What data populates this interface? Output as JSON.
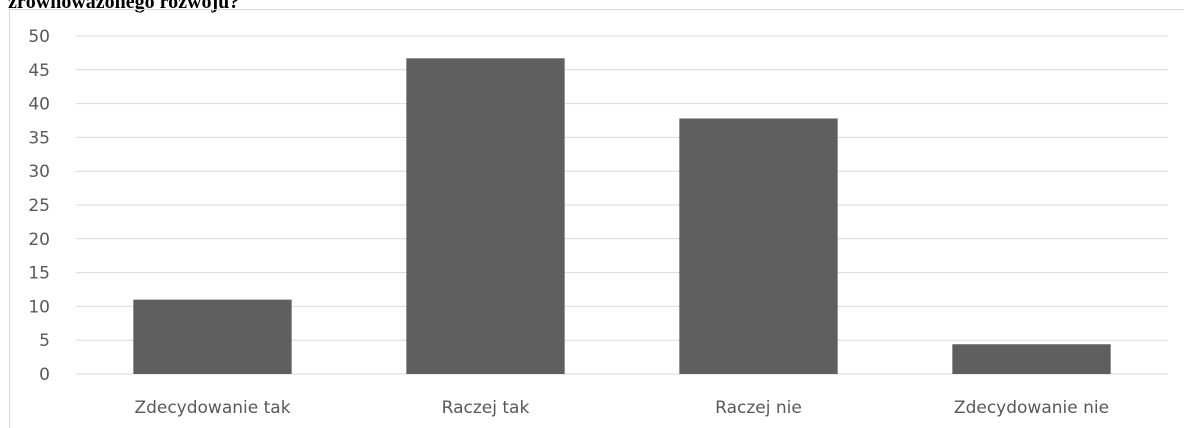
{
  "page": {
    "title_fragment": "zrównoważonego rozwoju?"
  },
  "chart_data": {
    "type": "bar",
    "categories": [
      "Zdecydowanie tak",
      "Raczej tak",
      "Raczej nie",
      "Zdecydowanie nie"
    ],
    "values": [
      11,
      46.7,
      37.8,
      4.4
    ],
    "ylim": [
      0,
      50
    ],
    "yticks": [
      0,
      5,
      10,
      15,
      20,
      25,
      30,
      35,
      40,
      45,
      50
    ],
    "grid": true,
    "legend": "none",
    "colors": {
      "bar": "#5f5f5f",
      "grid": "#d9d9d9",
      "text": "#595959"
    }
  }
}
